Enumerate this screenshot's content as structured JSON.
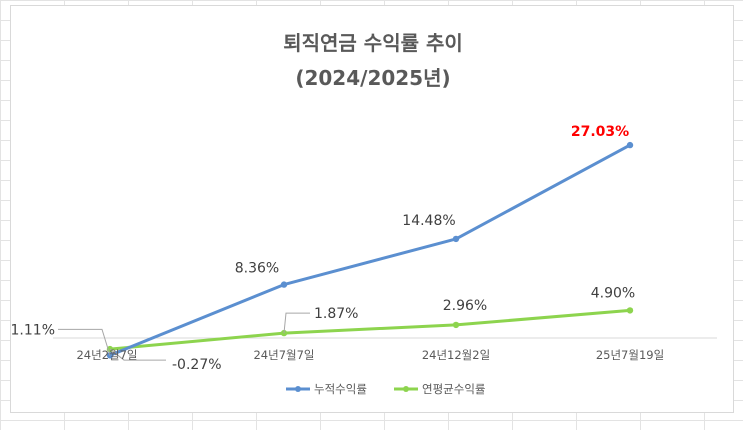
{
  "chart_data": {
    "type": "line",
    "title": "퇴직연금 수익률 추이",
    "subtitle": "(2024/2025년)",
    "categories": [
      "24년2월7일",
      "24년7월7일",
      "24년12월2일",
      "25년7월19일"
    ],
    "series": [
      {
        "name": "누적수익률",
        "color": "#5b8fd0",
        "values": [
          -1.11,
          8.36,
          14.48,
          27.03
        ],
        "labels": [
          "-1.11%",
          "8.36%",
          "14.48%",
          "27.03%"
        ]
      },
      {
        "name": "연평균수익률",
        "color": "#8dd44e",
        "values": [
          -0.27,
          1.87,
          2.96,
          4.9
        ],
        "labels": [
          "-0.27%",
          "1.87%",
          "2.96%",
          "4.90%"
        ]
      }
    ],
    "highlight_color": "#ff0000",
    "ylim": [
      -2,
      34
    ],
    "legend": "bottom",
    "grid": false,
    "xlabel": "",
    "ylabel": ""
  }
}
